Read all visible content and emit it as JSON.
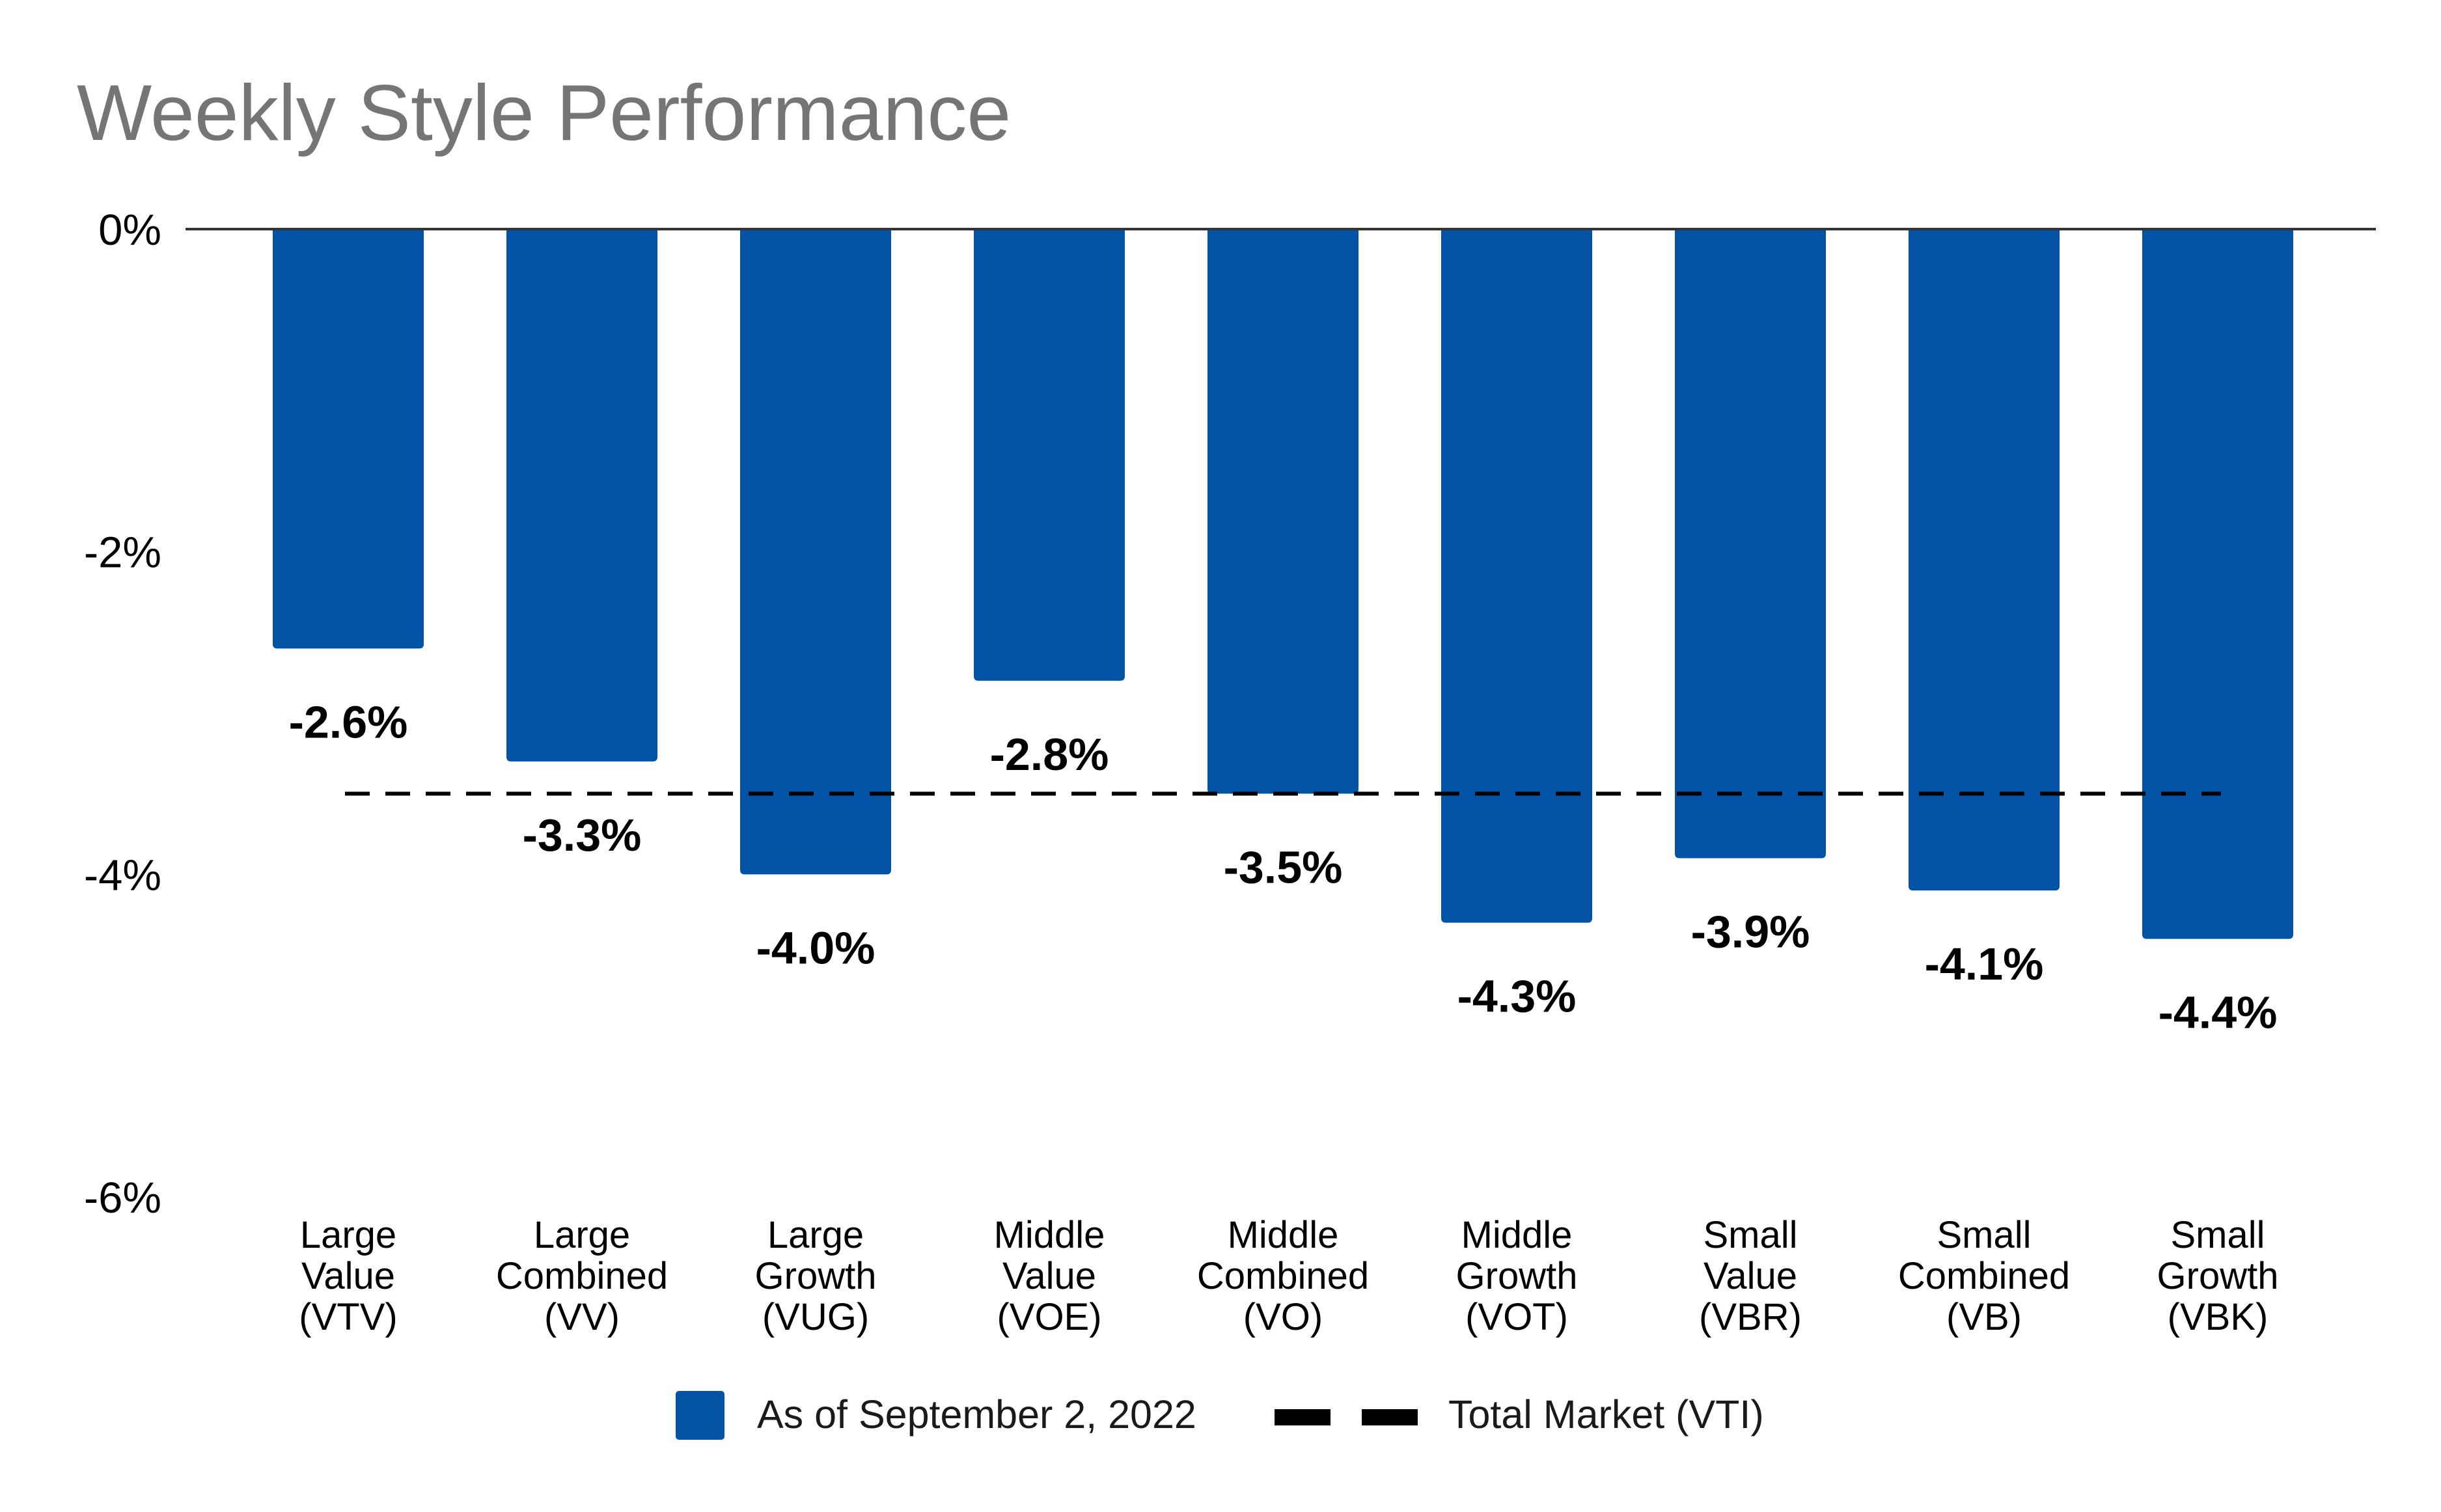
{
  "chart_data": {
    "type": "bar",
    "title": "Weekly Style Performance",
    "xlabel": "",
    "ylabel": "",
    "ylim": [
      -6,
      0
    ],
    "y_ticks": [
      0,
      -2,
      -4,
      -6
    ],
    "y_tick_labels": [
      "0%",
      "-2%",
      "-4%",
      "-6%"
    ],
    "categories": [
      [
        "Large",
        "Value",
        "(VTV)"
      ],
      [
        "Large",
        "Combined",
        "(VV)"
      ],
      [
        "Large",
        "Growth",
        "(VUG)"
      ],
      [
        "Middle",
        "Value",
        "(VOE)"
      ],
      [
        "Middle",
        "Combined",
        "(VO)"
      ],
      [
        "Middle",
        "Growth",
        "(VOT)"
      ],
      [
        "Small",
        "Value",
        "(VBR)"
      ],
      [
        "Small",
        "Combined",
        "(VB)"
      ],
      [
        "Small",
        "Growth",
        "(VBK)"
      ]
    ],
    "series": [
      {
        "name": "As of September 2, 2022",
        "color": "#0253A5",
        "values": [
          -2.6,
          -3.3,
          -4.0,
          -2.8,
          -3.5,
          -4.3,
          -3.9,
          -4.1,
          -4.4
        ],
        "data_labels": [
          "-2.6%",
          "-3.3%",
          "-4.0%",
          "-2.8%",
          "-3.5%",
          "-4.3%",
          "-3.9%",
          "-4.1%",
          "-4.4%"
        ]
      }
    ],
    "reference_line": {
      "name": "Total Market (VTI)",
      "value": -3.5,
      "style": "dashed",
      "color": "#000000"
    },
    "grid": false,
    "legend": {
      "position": "bottom",
      "entries": [
        "As of September 2, 2022",
        "Total Market (VTI)"
      ]
    }
  }
}
